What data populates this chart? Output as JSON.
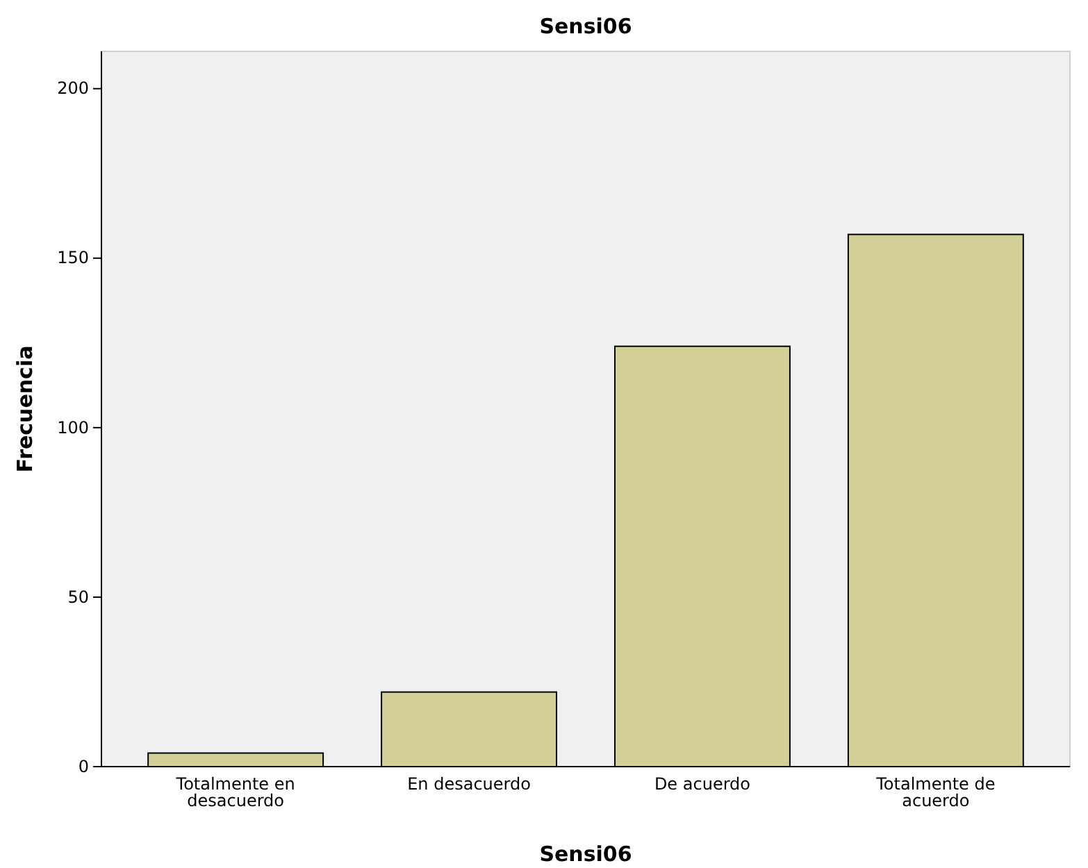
{
  "chart_data": {
    "type": "bar",
    "title": "Sensi06",
    "xlabel": "Sensi06",
    "ylabel": "Frecuencia",
    "categories": [
      "Totalmente en desacuerdo",
      "En desacuerdo",
      "De acuerdo",
      "Totalmente de acuerdo"
    ],
    "values": [
      4,
      22,
      124,
      157
    ],
    "color": "#d3cf96",
    "ylim": [
      0,
      211
    ],
    "yticks": [
      0,
      50,
      100,
      150,
      200
    ],
    "grid": false
  }
}
